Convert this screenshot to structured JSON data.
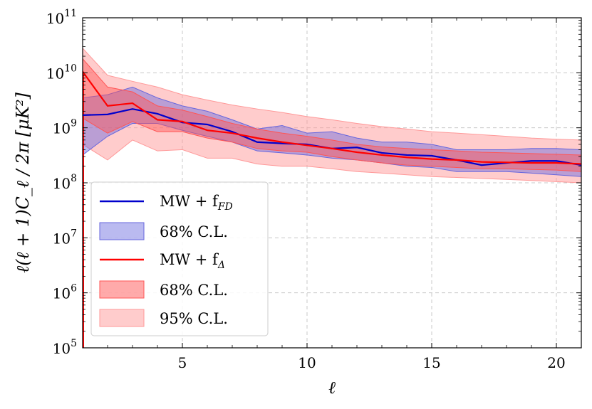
{
  "chart_data": {
    "type": "line",
    "xlabel": "ℓ",
    "ylabel": "ℓ(ℓ + 1)C_ℓ / 2π  [μK²]",
    "xlim": [
      1,
      21
    ],
    "ylim": [
      100000,
      100000000000
    ],
    "yscale": "log",
    "grid": true,
    "legend_position": "lower-left",
    "x_ticks": [
      5,
      10,
      15,
      20
    ],
    "x_tick_labels": [
      "5",
      "10",
      "15",
      "20"
    ],
    "y_ticks": [
      100000,
      1000000,
      10000000,
      100000000,
      1000000000,
      10000000000,
      100000000000
    ],
    "y_tick_labels": [
      {
        "base": "10",
        "exp": "5"
      },
      {
        "base": "10",
        "exp": "6"
      },
      {
        "base": "10",
        "exp": "7"
      },
      {
        "base": "10",
        "exp": "8"
      },
      {
        "base": "10",
        "exp": "9"
      },
      {
        "base": "10",
        "exp": "10"
      },
      {
        "base": "10",
        "exp": "11"
      }
    ],
    "x": [
      1,
      2,
      3,
      4,
      5,
      6,
      7,
      8,
      9,
      10,
      11,
      12,
      13,
      14,
      15,
      16,
      17,
      18,
      19,
      20,
      21
    ],
    "series": [
      {
        "name": "MW + f_FD",
        "legend_main": "MW + f",
        "legend_sub": "FD",
        "color": "#0000cc",
        "values": [
          1700000000.0,
          1750000000.0,
          2200000000.0,
          1800000000.0,
          1250000000.0,
          1150000000.0,
          850000000.0,
          550000000.0,
          520000000.0,
          500000000.0,
          420000000.0,
          440000000.0,
          350000000.0,
          320000000.0,
          310000000.0,
          260000000.0,
          210000000.0,
          230000000.0,
          250000000.0,
          250000000.0,
          210000000.0
        ],
        "band_68": {
          "label": "68% C.L.",
          "color": "#6666dd",
          "lower": [
            320000000.0,
            700000000.0,
            1200000000.0,
            1200000000.0,
            900000000.0,
            700000000.0,
            550000000.0,
            380000000.0,
            350000000.0,
            320000000.0,
            280000000.0,
            260000000.0,
            230000000.0,
            200000000.0,
            190000000.0,
            160000000.0,
            160000000.0,
            160000000.0,
            150000000.0,
            140000000.0,
            130000000.0
          ],
          "upper": [
            3500000000.0,
            4000000000.0,
            5500000000.0,
            3500000000.0,
            2500000000.0,
            2000000000.0,
            1400000000.0,
            950000000.0,
            1100000000.0,
            800000000.0,
            850000000.0,
            650000000.0,
            550000000.0,
            550000000.0,
            500000000.0,
            400000000.0,
            400000000.0,
            400000000.0,
            420000000.0,
            420000000.0,
            400000000.0
          ]
        }
      },
      {
        "name": "MW + f_Δ",
        "legend_main": "MW + f",
        "legend_sub": "Δ",
        "color": "#ff0000",
        "values": [
          10500000000.0,
          2500000000.0,
          2800000000.0,
          1400000000.0,
          1300000000.0,
          900000000.0,
          800000000.0,
          650000000.0,
          550000000.0,
          480000000.0,
          420000000.0,
          360000000.0,
          320000000.0,
          290000000.0,
          270000000.0,
          260000000.0,
          240000000.0,
          235000000.0,
          230000000.0,
          230000000.0,
          220000000.0
        ],
        "band_68": {
          "label": "68% C.L.",
          "color": "#ff5555",
          "lower": [
            1500000000.0,
            800000000.0,
            1300000000.0,
            850000000.0,
            850000000.0,
            650000000.0,
            550000000.0,
            420000000.0,
            380000000.0,
            360000000.0,
            300000000.0,
            260000000.0,
            230000000.0,
            210000000.0,
            200000000.0,
            190000000.0,
            180000000.0,
            180000000.0,
            175000000.0,
            170000000.0,
            160000000.0
          ],
          "upper": [
            18000000000.0,
            5500000000.0,
            4500000000.0,
            2500000000.0,
            2100000000.0,
            1600000000.0,
            1200000000.0,
            950000000.0,
            800000000.0,
            700000000.0,
            600000000.0,
            500000000.0,
            450000000.0,
            420000000.0,
            400000000.0,
            380000000.0,
            360000000.0,
            350000000.0,
            340000000.0,
            330000000.0,
            320000000.0
          ]
        },
        "band_95": {
          "label": "95% C.L.",
          "color": "#ff9999",
          "lower": [
            500000000.0,
            260000000.0,
            600000000.0,
            380000000.0,
            400000000.0,
            280000000.0,
            280000000.0,
            220000000.0,
            200000000.0,
            200000000.0,
            180000000.0,
            160000000.0,
            150000000.0,
            140000000.0,
            130000000.0,
            125000000.0,
            120000000.0,
            115000000.0,
            110000000.0,
            105000000.0,
            100000000.0
          ],
          "upper": [
            28000000000.0,
            9000000000.0,
            7000000000.0,
            5500000000.0,
            4000000000.0,
            3200000000.0,
            2600000000.0,
            2200000000.0,
            1900000000.0,
            1600000000.0,
            1400000000.0,
            1200000000.0,
            1050000000.0,
            950000000.0,
            850000000.0,
            800000000.0,
            750000000.0,
            700000000.0,
            650000000.0,
            620000000.0,
            600000000.0
          ]
        }
      }
    ]
  }
}
